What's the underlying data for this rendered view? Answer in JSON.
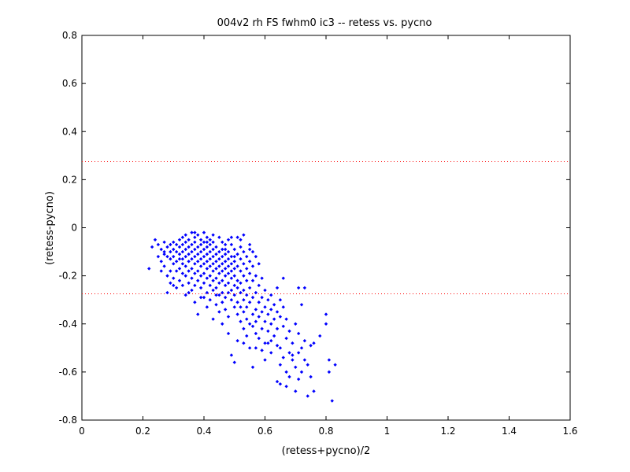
{
  "chart_data": {
    "type": "scatter",
    "title": "004v2 rh FS fwhm0 ic3 -- retess vs. pycno",
    "xlabel": "(retess+pycno)/2",
    "ylabel": "(retess-pycno)",
    "xlim": [
      0,
      1.6
    ],
    "ylim": [
      -0.8,
      0.8
    ],
    "xticks": [
      "0",
      "0.2",
      "0.4",
      "0.6",
      "0.8",
      "1",
      "1.2",
      "1.4",
      "1.6"
    ],
    "yticks": [
      "-0.8",
      "-0.6",
      "-0.4",
      "-0.2",
      "0",
      "0.2",
      "0.4",
      "0.6",
      "0.8"
    ],
    "grid": false,
    "marker_color": "#0000ff",
    "reference_line_color": "#ff0000",
    "reference_lines_y": [
      0.275,
      -0.275
    ],
    "series": [
      {
        "points": [
          [
            0.22,
            -0.17
          ],
          [
            0.23,
            -0.08
          ],
          [
            0.24,
            -0.05
          ],
          [
            0.25,
            -0.07
          ],
          [
            0.25,
            -0.12
          ],
          [
            0.26,
            -0.09
          ],
          [
            0.26,
            -0.14
          ],
          [
            0.27,
            -0.06
          ],
          [
            0.27,
            -0.11
          ],
          [
            0.27,
            -0.16
          ],
          [
            0.28,
            -0.08
          ],
          [
            0.28,
            -0.12
          ],
          [
            0.28,
            -0.2
          ],
          [
            0.28,
            -0.27
          ],
          [
            0.29,
            -0.07
          ],
          [
            0.29,
            -0.1
          ],
          [
            0.29,
            -0.13
          ],
          [
            0.29,
            -0.18
          ],
          [
            0.29,
            -0.23
          ],
          [
            0.3,
            -0.06
          ],
          [
            0.3,
            -0.09
          ],
          [
            0.3,
            -0.12
          ],
          [
            0.3,
            -0.15
          ],
          [
            0.3,
            -0.21
          ],
          [
            0.31,
            -0.07
          ],
          [
            0.31,
            -0.1
          ],
          [
            0.31,
            -0.14
          ],
          [
            0.31,
            -0.18
          ],
          [
            0.31,
            -0.25
          ],
          [
            0.32,
            -0.05
          ],
          [
            0.32,
            -0.08
          ],
          [
            0.32,
            -0.11
          ],
          [
            0.32,
            -0.13
          ],
          [
            0.32,
            -0.17
          ],
          [
            0.32,
            -0.22
          ],
          [
            0.33,
            -0.04
          ],
          [
            0.33,
            -0.07
          ],
          [
            0.33,
            -0.1
          ],
          [
            0.33,
            -0.15
          ],
          [
            0.33,
            -0.19
          ],
          [
            0.33,
            -0.24
          ],
          [
            0.34,
            -0.03
          ],
          [
            0.34,
            -0.06
          ],
          [
            0.34,
            -0.09
          ],
          [
            0.34,
            -0.12
          ],
          [
            0.34,
            -0.16
          ],
          [
            0.34,
            -0.2
          ],
          [
            0.34,
            -0.28
          ],
          [
            0.35,
            -0.05
          ],
          [
            0.35,
            -0.08
          ],
          [
            0.35,
            -0.11
          ],
          [
            0.35,
            -0.14
          ],
          [
            0.35,
            -0.18
          ],
          [
            0.35,
            -0.23
          ],
          [
            0.36,
            -0.02
          ],
          [
            0.36,
            -0.07
          ],
          [
            0.36,
            -0.1
          ],
          [
            0.36,
            -0.13
          ],
          [
            0.36,
            -0.17
          ],
          [
            0.36,
            -0.21
          ],
          [
            0.36,
            -0.26
          ],
          [
            0.37,
            -0.04
          ],
          [
            0.37,
            -0.06
          ],
          [
            0.37,
            -0.09
          ],
          [
            0.37,
            -0.12
          ],
          [
            0.37,
            -0.15
          ],
          [
            0.37,
            -0.19
          ],
          [
            0.37,
            -0.24
          ],
          [
            0.37,
            -0.31
          ],
          [
            0.38,
            -0.03
          ],
          [
            0.38,
            -0.08
          ],
          [
            0.38,
            -0.11
          ],
          [
            0.38,
            -0.14
          ],
          [
            0.38,
            -0.18
          ],
          [
            0.38,
            -0.22
          ],
          [
            0.38,
            -0.36
          ],
          [
            0.39,
            -0.05
          ],
          [
            0.39,
            -0.07
          ],
          [
            0.39,
            -0.1
          ],
          [
            0.39,
            -0.13
          ],
          [
            0.39,
            -0.16
          ],
          [
            0.39,
            -0.2
          ],
          [
            0.39,
            -0.25
          ],
          [
            0.4,
            -0.02
          ],
          [
            0.4,
            -0.06
          ],
          [
            0.4,
            -0.09
          ],
          [
            0.4,
            -0.12
          ],
          [
            0.4,
            -0.15
          ],
          [
            0.4,
            -0.19
          ],
          [
            0.4,
            -0.23
          ],
          [
            0.4,
            -0.29
          ],
          [
            0.41,
            -0.04
          ],
          [
            0.41,
            -0.08
          ],
          [
            0.41,
            -0.11
          ],
          [
            0.41,
            -0.14
          ],
          [
            0.41,
            -0.17
          ],
          [
            0.41,
            -0.21
          ],
          [
            0.41,
            -0.27
          ],
          [
            0.41,
            -0.33
          ],
          [
            0.42,
            -0.05
          ],
          [
            0.42,
            -0.07
          ],
          [
            0.42,
            -0.1
          ],
          [
            0.42,
            -0.13
          ],
          [
            0.42,
            -0.16
          ],
          [
            0.42,
            -0.2
          ],
          [
            0.42,
            -0.24
          ],
          [
            0.42,
            -0.3
          ],
          [
            0.43,
            -0.06
          ],
          [
            0.43,
            -0.09
          ],
          [
            0.43,
            -0.12
          ],
          [
            0.43,
            -0.15
          ],
          [
            0.43,
            -0.18
          ],
          [
            0.43,
            -0.22
          ],
          [
            0.43,
            -0.26
          ],
          [
            0.43,
            -0.38
          ],
          [
            0.44,
            -0.08
          ],
          [
            0.44,
            -0.11
          ],
          [
            0.44,
            -0.14
          ],
          [
            0.44,
            -0.17
          ],
          [
            0.44,
            -0.21
          ],
          [
            0.44,
            -0.25
          ],
          [
            0.44,
            -0.32
          ],
          [
            0.45,
            -0.04
          ],
          [
            0.45,
            -0.1
          ],
          [
            0.45,
            -0.13
          ],
          [
            0.45,
            -0.16
          ],
          [
            0.45,
            -0.19
          ],
          [
            0.45,
            -0.23
          ],
          [
            0.45,
            -0.28
          ],
          [
            0.45,
            -0.35
          ],
          [
            0.46,
            -0.06
          ],
          [
            0.46,
            -0.12
          ],
          [
            0.46,
            -0.15
          ],
          [
            0.46,
            -0.18
          ],
          [
            0.46,
            -0.22
          ],
          [
            0.46,
            -0.27
          ],
          [
            0.46,
            -0.31
          ],
          [
            0.46,
            -0.4
          ],
          [
            0.47,
            -0.09
          ],
          [
            0.47,
            -0.11
          ],
          [
            0.47,
            -0.14
          ],
          [
            0.47,
            -0.17
          ],
          [
            0.47,
            -0.2
          ],
          [
            0.47,
            -0.24
          ],
          [
            0.47,
            -0.29
          ],
          [
            0.47,
            -0.34
          ],
          [
            0.48,
            -0.05
          ],
          [
            0.48,
            -0.1
          ],
          [
            0.48,
            -0.13
          ],
          [
            0.48,
            -0.16
          ],
          [
            0.48,
            -0.19
          ],
          [
            0.48,
            -0.23
          ],
          [
            0.48,
            -0.27
          ],
          [
            0.48,
            -0.37
          ],
          [
            0.48,
            -0.44
          ],
          [
            0.49,
            -0.07
          ],
          [
            0.49,
            -0.12
          ],
          [
            0.49,
            -0.15
          ],
          [
            0.49,
            -0.18
          ],
          [
            0.49,
            -0.21
          ],
          [
            0.49,
            -0.26
          ],
          [
            0.49,
            -0.3
          ],
          [
            0.49,
            -0.53
          ],
          [
            0.5,
            -0.09
          ],
          [
            0.5,
            -0.14
          ],
          [
            0.5,
            -0.17
          ],
          [
            0.5,
            -0.2
          ],
          [
            0.5,
            -0.24
          ],
          [
            0.5,
            -0.28
          ],
          [
            0.5,
            -0.33
          ],
          [
            0.5,
            -0.56
          ],
          [
            0.51,
            -0.04
          ],
          [
            0.51,
            -0.11
          ],
          [
            0.51,
            -0.16
          ],
          [
            0.51,
            -0.22
          ],
          [
            0.51,
            -0.25
          ],
          [
            0.51,
            -0.31
          ],
          [
            0.51,
            -0.36
          ],
          [
            0.51,
            -0.47
          ],
          [
            0.52,
            -0.08
          ],
          [
            0.52,
            -0.13
          ],
          [
            0.52,
            -0.18
          ],
          [
            0.52,
            -0.23
          ],
          [
            0.52,
            -0.27
          ],
          [
            0.52,
            -0.33
          ],
          [
            0.52,
            -0.39
          ],
          [
            0.53,
            -0.03
          ],
          [
            0.53,
            -0.1
          ],
          [
            0.53,
            -0.15
          ],
          [
            0.53,
            -0.2
          ],
          [
            0.53,
            -0.26
          ],
          [
            0.53,
            -0.3
          ],
          [
            0.53,
            -0.35
          ],
          [
            0.53,
            -0.42
          ],
          [
            0.54,
            -0.12
          ],
          [
            0.54,
            -0.17
          ],
          [
            0.54,
            -0.22
          ],
          [
            0.54,
            -0.28
          ],
          [
            0.54,
            -0.33
          ],
          [
            0.54,
            -0.38
          ],
          [
            0.54,
            -0.45
          ],
          [
            0.55,
            -0.07
          ],
          [
            0.55,
            -0.14
          ],
          [
            0.55,
            -0.19
          ],
          [
            0.55,
            -0.25
          ],
          [
            0.55,
            -0.31
          ],
          [
            0.55,
            -0.4
          ],
          [
            0.55,
            -0.5
          ],
          [
            0.56,
            -0.1
          ],
          [
            0.56,
            -0.16
          ],
          [
            0.56,
            -0.22
          ],
          [
            0.56,
            -0.29
          ],
          [
            0.56,
            -0.36
          ],
          [
            0.56,
            -0.41
          ],
          [
            0.56,
            -0.58
          ],
          [
            0.57,
            -0.12
          ],
          [
            0.57,
            -0.2
          ],
          [
            0.57,
            -0.27
          ],
          [
            0.57,
            -0.34
          ],
          [
            0.57,
            -0.39
          ],
          [
            0.57,
            -0.44
          ],
          [
            0.58,
            -0.24
          ],
          [
            0.58,
            -0.31
          ],
          [
            0.58,
            -0.37
          ],
          [
            0.58,
            -0.46
          ],
          [
            0.59,
            -0.21
          ],
          [
            0.59,
            -0.29
          ],
          [
            0.59,
            -0.35
          ],
          [
            0.59,
            -0.42
          ],
          [
            0.59,
            -0.51
          ],
          [
            0.6,
            -0.26
          ],
          [
            0.6,
            -0.33
          ],
          [
            0.6,
            -0.39
          ],
          [
            0.6,
            -0.48
          ],
          [
            0.6,
            -0.55
          ],
          [
            0.61,
            -0.3
          ],
          [
            0.61,
            -0.36
          ],
          [
            0.61,
            -0.43
          ],
          [
            0.62,
            -0.28
          ],
          [
            0.62,
            -0.34
          ],
          [
            0.62,
            -0.4
          ],
          [
            0.62,
            -0.47
          ],
          [
            0.62,
            -0.52
          ],
          [
            0.63,
            -0.32
          ],
          [
            0.63,
            -0.38
          ],
          [
            0.63,
            -0.45
          ],
          [
            0.64,
            -0.25
          ],
          [
            0.64,
            -0.35
          ],
          [
            0.64,
            -0.42
          ],
          [
            0.64,
            -0.49
          ],
          [
            0.64,
            -0.64
          ],
          [
            0.65,
            -0.3
          ],
          [
            0.65,
            -0.37
          ],
          [
            0.65,
            -0.5
          ],
          [
            0.65,
            -0.57
          ],
          [
            0.65,
            -0.65
          ],
          [
            0.66,
            -0.21
          ],
          [
            0.66,
            -0.33
          ],
          [
            0.66,
            -0.41
          ],
          [
            0.66,
            -0.54
          ],
          [
            0.67,
            -0.38
          ],
          [
            0.67,
            -0.46
          ],
          [
            0.67,
            -0.6
          ],
          [
            0.68,
            -0.43
          ],
          [
            0.68,
            -0.52
          ],
          [
            0.68,
            -0.62
          ],
          [
            0.69,
            -0.48
          ],
          [
            0.69,
            -0.55
          ],
          [
            0.7,
            -0.4
          ],
          [
            0.7,
            -0.58
          ],
          [
            0.7,
            -0.68
          ],
          [
            0.71,
            -0.25
          ],
          [
            0.71,
            -0.44
          ],
          [
            0.71,
            -0.52
          ],
          [
            0.72,
            -0.32
          ],
          [
            0.72,
            -0.5
          ],
          [
            0.72,
            -0.6
          ],
          [
            0.73,
            -0.25
          ],
          [
            0.73,
            -0.47
          ],
          [
            0.73,
            -0.55
          ],
          [
            0.74,
            -0.57
          ],
          [
            0.74,
            -0.7
          ],
          [
            0.75,
            -0.49
          ],
          [
            0.75,
            -0.62
          ],
          [
            0.76,
            -0.68
          ],
          [
            0.76,
            -0.48
          ],
          [
            0.78,
            -0.45
          ],
          [
            0.8,
            -0.36
          ],
          [
            0.8,
            -0.4
          ],
          [
            0.81,
            -0.55
          ],
          [
            0.82,
            -0.72
          ],
          [
            0.83,
            -0.57
          ],
          [
            0.81,
            -0.6
          ],
          [
            0.26,
            -0.18
          ],
          [
            0.3,
            -0.24
          ],
          [
            0.35,
            -0.27
          ],
          [
            0.39,
            -0.29
          ],
          [
            0.44,
            -0.28
          ],
          [
            0.41,
            -0.06
          ],
          [
            0.47,
            -0.07
          ],
          [
            0.43,
            -0.03
          ],
          [
            0.49,
            -0.04
          ],
          [
            0.52,
            -0.05
          ],
          [
            0.27,
            -0.1
          ],
          [
            0.33,
            -0.13
          ],
          [
            0.37,
            -0.02
          ],
          [
            0.46,
            -0.09
          ],
          [
            0.5,
            -0.12
          ],
          [
            0.55,
            -0.09
          ],
          [
            0.58,
            -0.15
          ],
          [
            0.53,
            -0.48
          ],
          [
            0.57,
            -0.5
          ],
          [
            0.61,
            -0.48
          ],
          [
            0.67,
            -0.66
          ],
          [
            0.69,
            -0.53
          ],
          [
            0.71,
            -0.63
          ]
        ]
      }
    ]
  }
}
